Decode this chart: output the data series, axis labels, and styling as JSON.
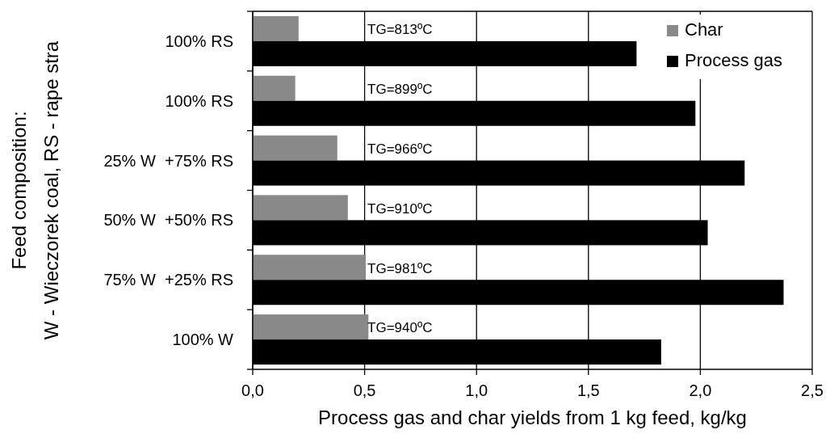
{
  "chart_data": {
    "type": "bar",
    "orientation": "horizontal",
    "xlabel": "Process gas and char yields from 1 kg feed, kg/kg",
    "ylabel": "Feed composition:\nW - Wieczorek coal, RS - rape stra",
    "categories": [
      "100% RS",
      "100% RS",
      "25% W  +75% RS",
      "50% W  +50% RS",
      "75% W  +25% RS",
      "100% W"
    ],
    "series": [
      {
        "name": "Char",
        "color": "#898989",
        "values": [
          0.205,
          0.19,
          0.378,
          0.425,
          0.505,
          0.517
        ]
      },
      {
        "name": "Process gas",
        "color": "#000000",
        "values": [
          1.715,
          1.978,
          2.198,
          2.033,
          2.372,
          1.825
        ]
      }
    ],
    "xlim": [
      0,
      2.5
    ],
    "xticks": [
      {
        "value": 0,
        "label": "0,0"
      },
      {
        "value": 0.5,
        "label": "0,5"
      },
      {
        "value": 1,
        "label": "1,0"
      },
      {
        "value": 1.5,
        "label": "1,5"
      },
      {
        "value": 2,
        "label": "2,0"
      },
      {
        "value": 2.5,
        "label": "2,5"
      }
    ],
    "grid": "x",
    "legend": "top right",
    "annotations": [
      "TG=813ºC",
      "TG=899ºC",
      "TG=966ºC",
      "TG=910ºC",
      "TG=981ºC",
      "TG=940ºC"
    ]
  }
}
